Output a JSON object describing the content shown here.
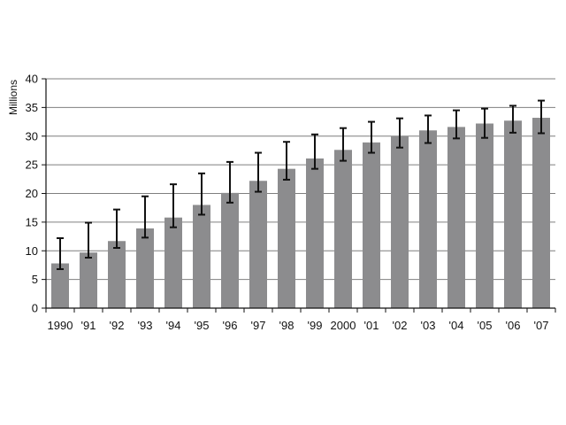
{
  "chart_data": {
    "type": "bar",
    "title": "",
    "xlabel": "",
    "ylabel": "Millions",
    "ylim": [
      0,
      40
    ],
    "yticks": [
      0,
      5,
      10,
      15,
      20,
      25,
      30,
      35,
      40
    ],
    "grid": true,
    "categories": [
      "1990",
      "'91",
      "'92",
      "'93",
      "'94",
      "'95",
      "'96",
      "'97",
      "'98",
      "'99",
      "2000",
      "'01",
      "'02",
      "'03",
      "'04",
      "'05",
      "'06",
      "'07"
    ],
    "values": [
      7.8,
      9.7,
      11.7,
      13.9,
      15.8,
      18.0,
      20.1,
      22.2,
      24.3,
      26.1,
      27.6,
      28.9,
      30.0,
      31.0,
      31.6,
      32.2,
      32.7,
      33.2
    ],
    "error_low": [
      6.8,
      8.8,
      10.5,
      12.3,
      14.1,
      16.3,
      18.4,
      20.3,
      22.4,
      24.3,
      25.7,
      27.1,
      28.0,
      28.8,
      29.6,
      29.7,
      30.6,
      30.5
    ],
    "error_high": [
      12.2,
      14.9,
      17.2,
      19.5,
      21.6,
      23.5,
      25.5,
      27.1,
      29.0,
      30.3,
      31.4,
      32.5,
      33.1,
      33.6,
      34.5,
      34.8,
      35.3,
      36.2
    ],
    "colors": {
      "bar": "#8c8c8e",
      "grid": "#7f7f7f",
      "axis": "#111111",
      "errorbar": "#111111"
    }
  }
}
